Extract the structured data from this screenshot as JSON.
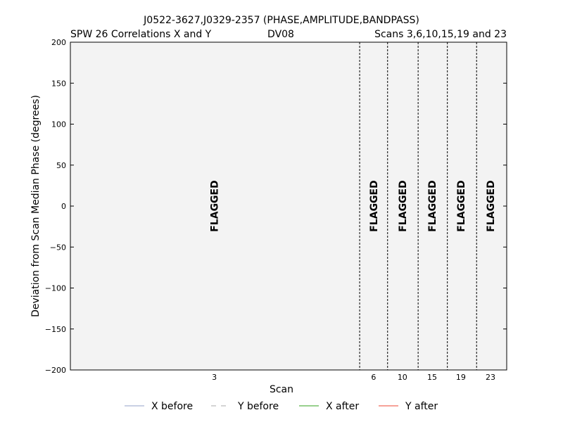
{
  "chart_data": {
    "type": "line",
    "title": "J0522-3627,J0329-2357 (PHASE,AMPLITUDE,BANDPASS)",
    "subtitle_left": "SPW 26 Correlations X and Y",
    "subtitle_center": "DV08",
    "subtitle_right": "Scans 3,6,10,15,19 and 23",
    "xlabel": "Scan",
    "ylabel": "Deviation from Scan Median Phase (degrees)",
    "ylim": [
      -200,
      200
    ],
    "yticks": [
      200,
      150,
      100,
      50,
      0,
      -50,
      -100,
      -150,
      -200
    ],
    "ytick_labels": [
      "200",
      "150",
      "100",
      "50",
      "0",
      "−50",
      "−100",
      "−150",
      "−200"
    ],
    "grid": false,
    "scans": [
      {
        "label": "3",
        "start": 0,
        "end": 0.663,
        "center": 0.33,
        "flag": "FLAGGED"
      },
      {
        "label": "6",
        "start": 0.663,
        "end": 0.727,
        "center": 0.695,
        "flag": "FLAGGED"
      },
      {
        "label": "10",
        "start": 0.727,
        "end": 0.797,
        "center": 0.761,
        "flag": "FLAGGED"
      },
      {
        "label": "15",
        "start": 0.797,
        "end": 0.864,
        "center": 0.829,
        "flag": "FLAGGED"
      },
      {
        "label": "19",
        "start": 0.864,
        "end": 0.931,
        "center": 0.895,
        "flag": "FLAGGED"
      },
      {
        "label": "23",
        "start": 0.931,
        "end": 1.0,
        "center": 0.963,
        "flag": "FLAGGED"
      }
    ],
    "series": [
      {
        "name": "X before",
        "color": "#a9b4d3",
        "dash": "solid",
        "values": []
      },
      {
        "name": "Y before",
        "color": "#bbbbbb",
        "dash": "dashed",
        "values": []
      },
      {
        "name": "X after",
        "color": "#5ab54a",
        "dash": "solid",
        "values": []
      },
      {
        "name": "Y after",
        "color": "#f06b5b",
        "dash": "solid",
        "values": []
      }
    ],
    "legend_position": "bottom",
    "plot_background": "#f3f3f3"
  }
}
